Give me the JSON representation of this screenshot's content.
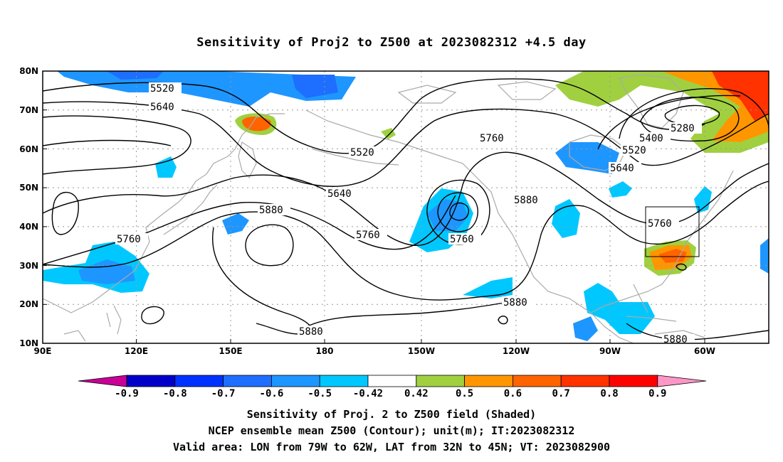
{
  "title": "Sensitivity of Proj2 to Z500 at 2023082312 +4.5 day",
  "map": {
    "lon_range": [
      "90E",
      "50W"
    ],
    "lat_range": [
      10,
      80
    ],
    "x_ticks": [
      "90E",
      "120E",
      "150E",
      "180",
      "150W",
      "120W",
      "90W",
      "60W"
    ],
    "y_ticks": [
      "80N",
      "70N",
      "60N",
      "50N",
      "40N",
      "30N",
      "20N",
      "10N"
    ],
    "contour_labels": [
      "5520",
      "5640",
      "5520",
      "5640",
      "5760",
      "5760",
      "5880",
      "5760",
      "5880",
      "5880",
      "5880",
      "5400",
      "5520",
      "5640",
      "5280",
      "5760",
      "5880"
    ],
    "valid_box": {
      "lon": [
        "79W",
        "62W"
      ],
      "lat": [
        "32N",
        "45N"
      ]
    },
    "colors": {
      "neg_strong": "#0000c8",
      "neg_mid": "#1e6eff",
      "neg_weak": "#00c8ff",
      "pos_weak": "#a0d040",
      "pos_mid": "#ff9600",
      "pos_strong": "#ff3200",
      "coast": "#aaaaaa",
      "contour": "#000000"
    }
  },
  "colorbar": {
    "labels": [
      "-0.9",
      "-0.8",
      "-0.7",
      "-0.6",
      "-0.5",
      "-0.42",
      "0.42",
      "0.5",
      "0.6",
      "0.7",
      "0.8",
      "0.9"
    ],
    "colors": [
      "#c80096",
      "#0000c8",
      "#0032ff",
      "#1e6eff",
      "#1e96ff",
      "#00c8ff",
      "#ffffff",
      "#a0d040",
      "#ff9600",
      "#ff6400",
      "#ff3200",
      "#ff0000",
      "#ff96c8"
    ]
  },
  "caption": {
    "line1": "Sensitivity of Proj. 2 to Z500 field (Shaded)",
    "line2": "NCEP ensemble mean Z500 (Contour); unit(m); IT:2023082312",
    "line3": "Valid area: LON from 79W to 62W, LAT from 32N to 45N; VT: 2023082900"
  }
}
